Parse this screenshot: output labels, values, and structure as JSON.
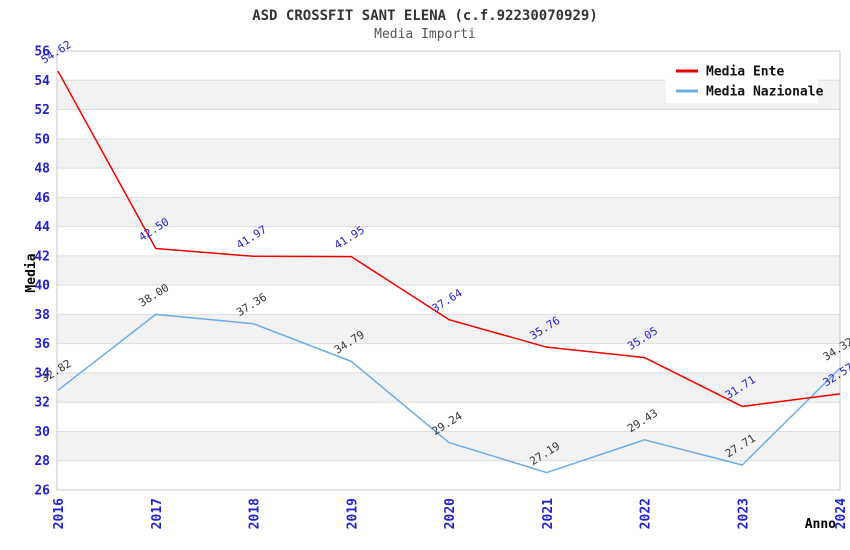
{
  "title": "ASD CROSSFIT SANT ELENA (c.f.92230070929)",
  "subtitle": "Media Importi",
  "chart_data": {
    "type": "line",
    "x": [
      "2016",
      "2017",
      "2018",
      "2019",
      "2020",
      "2021",
      "2022",
      "2023",
      "2024"
    ],
    "series": [
      {
        "name": "Media Nazionale",
        "color": "#6AACE4",
        "label_color": "#333333",
        "values": [
          32.82,
          38.0,
          37.36,
          34.79,
          29.24,
          27.19,
          29.43,
          27.71,
          34.32
        ]
      },
      {
        "name": "Media Ente",
        "color": "#EE0000",
        "label_color": "#2222CC",
        "values": [
          54.62,
          42.5,
          41.97,
          41.95,
          37.64,
          35.76,
          35.05,
          31.71,
          32.57
        ]
      }
    ],
    "xlabel": "Anno",
    "ylabel": "Media",
    "ylim": [
      26,
      56
    ],
    "ytick_step": 2,
    "grid": true,
    "legend_position": "top-right",
    "value_label_decimals": 2,
    "colors": {
      "tick_label": "#2222CC",
      "axis_title": "#333333",
      "gridline": "#DDDDDD",
      "band": "#F2F2F2",
      "plot_border": "#C8C8C8",
      "legend_bg": "#FFFFFF",
      "legend_text": "#111111",
      "background": "#FFFFFF"
    }
  }
}
